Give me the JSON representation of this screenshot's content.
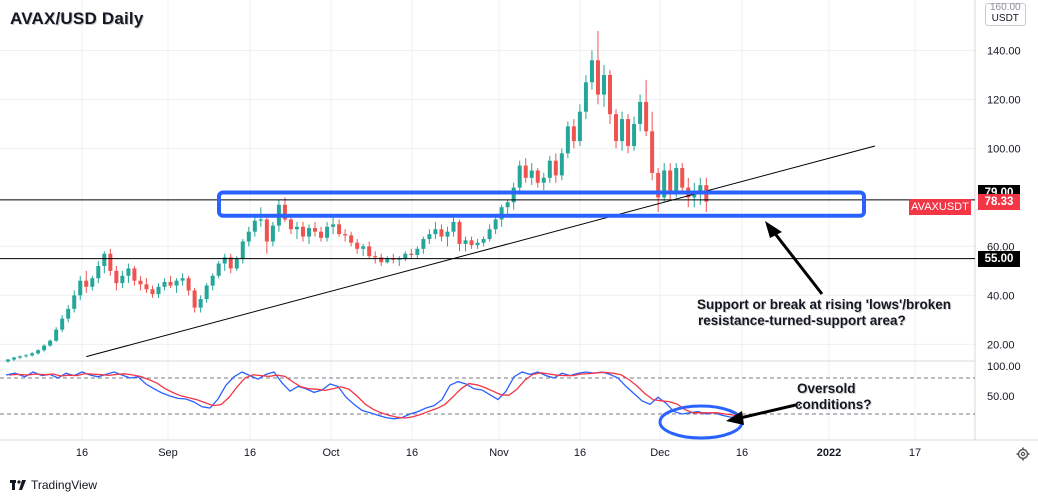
{
  "header": {
    "title": "AVAX/USD Daily"
  },
  "price_axis": {
    "currency": "USDT",
    "top_clipped_label": "160.00",
    "labels": [
      "140.00",
      "120.00",
      "100.00",
      "60.00",
      "40.00",
      "20.00"
    ],
    "label_values": [
      140,
      120,
      100,
      60,
      40,
      20
    ]
  },
  "price_tags": {
    "resistance": {
      "label": "79.00",
      "value": 79,
      "color": "#000000"
    },
    "last": {
      "label": "78.33",
      "value": 78.33,
      "color": "#f23645",
      "symbol": "AVAXUSDT"
    },
    "support": {
      "label": "55.00",
      "value": 55,
      "color": "#000000"
    }
  },
  "stoch_axis": {
    "labels": [
      "100.00",
      "50.00"
    ],
    "label_values": [
      100,
      50
    ]
  },
  "time_axis": {
    "labels": [
      "16",
      "Sep",
      "16",
      "Oct",
      "16",
      "Nov",
      "16",
      "Dec",
      "16",
      "2022",
      "17"
    ],
    "bold": "2022"
  },
  "annotations": {
    "support_note": {
      "line1": "Support or break at rising 'lows'/broken",
      "line2": "resistance-turned-support area?"
    },
    "oversold_note": {
      "line1": "Oversold",
      "line2": "conditions?"
    }
  },
  "branding": {
    "name": "TradingView"
  },
  "colors": {
    "up": "#26a69a",
    "down": "#ef5350",
    "highlight": "#2962ff",
    "stoch_k": "#2962ff",
    "stoch_d": "#f23645",
    "grid": "#eef0f3"
  },
  "chart_data": [
    {
      "type": "candlestick",
      "title": "AVAX/USD Daily",
      "ylim": [
        10,
        160
      ],
      "x": "daily candles, mid-Aug 2021 to mid-Dec 2021",
      "series": [
        {
          "name": "AVAXUSDT",
          "values": [
            [
              13,
              14,
              12.5,
              13.8
            ],
            [
              13.8,
              15,
              13.2,
              14.6
            ],
            [
              14.6,
              15.5,
              14,
              15.1
            ],
            [
              15.1,
              16,
              14.6,
              15.5
            ],
            [
              15.5,
              16.8,
              15,
              16.3
            ],
            [
              16.3,
              18,
              15.8,
              17.6
            ],
            [
              17.6,
              20,
              17,
              19.5
            ],
            [
              19.5,
              22,
              19,
              21.5
            ],
            [
              21.5,
              27,
              21,
              26
            ],
            [
              26,
              32,
              25,
              30.5
            ],
            [
              30.5,
              36,
              29,
              34.5
            ],
            [
              34.5,
              42,
              33,
              40
            ],
            [
              40,
              48,
              38,
              46
            ],
            [
              46,
              50,
              41,
              43.5
            ],
            [
              43.5,
              48,
              42,
              47
            ],
            [
              47,
              54,
              45,
              52
            ],
            [
              52,
              58,
              49,
              57
            ],
            [
              57,
              59,
              48,
              50
            ],
            [
              50,
              52,
              42,
              45
            ],
            [
              45,
              50,
              43,
              48
            ],
            [
              48,
              53,
              45,
              51
            ],
            [
              51,
              52,
              44,
              46
            ],
            [
              46,
              48,
              42,
              44.5
            ],
            [
              44.5,
              47,
              41,
              42.5
            ],
            [
              42.5,
              44,
              39,
              40.5
            ],
            [
              40.5,
              45,
              39,
              43.5
            ],
            [
              43.5,
              47,
              42,
              45.5
            ],
            [
              45.5,
              48,
              43,
              44
            ],
            [
              44,
              47,
              41,
              46
            ],
            [
              46,
              49,
              44,
              47
            ],
            [
              47,
              48,
              40,
              42
            ],
            [
              42,
              43,
              33,
              35
            ],
            [
              35,
              40,
              33,
              38.5
            ],
            [
              38.5,
              45,
              37,
              44
            ],
            [
              44,
              49,
              42,
              48
            ],
            [
              48,
              54,
              47,
              53
            ],
            [
              53,
              57,
              50,
              55.5
            ],
            [
              55.5,
              57,
              49,
              51
            ],
            [
              51,
              56,
              50,
              55
            ],
            [
              55,
              63,
              53,
              62
            ],
            [
              62,
              68,
              60,
              66
            ],
            [
              66,
              72,
              64,
              70.5
            ],
            [
              70.5,
              76,
              68,
              71
            ],
            [
              71,
              72,
              57,
              62
            ],
            [
              62,
              70,
              60,
              68.5
            ],
            [
              68.5,
              79,
              66,
              77
            ],
            [
              77,
              80,
              70,
              71
            ],
            [
              71,
              73,
              65,
              67
            ],
            [
              67,
              70,
              63,
              68
            ],
            [
              68,
              70,
              62,
              64
            ],
            [
              64,
              69,
              61,
              67.5
            ],
            [
              67.5,
              70,
              64,
              66
            ],
            [
              66,
              68,
              62,
              63.5
            ],
            [
              63.5,
              70,
              62,
              68
            ],
            [
              68,
              72,
              65,
              69
            ],
            [
              69,
              71,
              64,
              65
            ],
            [
              65,
              67,
              62,
              64.5
            ],
            [
              64.5,
              66,
              60,
              61.5
            ],
            [
              61.5,
              63,
              57,
              59
            ],
            [
              59,
              61,
              56,
              60
            ],
            [
              60,
              62,
              55,
              56
            ],
            [
              56,
              58,
              53,
              55.5
            ],
            [
              55.5,
              57,
              52,
              53.5
            ],
            [
              53.5,
              56,
              53,
              55
            ],
            [
              55,
              57,
              53,
              54.5
            ],
            [
              54.5,
              56,
              52,
              55
            ],
            [
              55,
              58,
              54,
              57
            ],
            [
              57,
              59,
              55,
              56.5
            ],
            [
              56.5,
              60,
              55,
              59
            ],
            [
              59,
              64,
              57,
              63
            ],
            [
              63,
              67,
              61,
              65
            ],
            [
              65,
              70,
              63,
              67
            ],
            [
              67,
              69,
              62,
              64
            ],
            [
              64,
              68,
              60,
              66
            ],
            [
              66,
              72,
              64,
              70
            ],
            [
              70,
              71,
              58,
              61
            ],
            [
              61,
              64,
              58,
              62.5
            ],
            [
              62.5,
              64,
              59,
              60.5
            ],
            [
              60.5,
              63,
              59,
              61.5
            ],
            [
              61.5,
              64,
              60,
              63
            ],
            [
              63,
              69,
              62,
              67
            ],
            [
              67,
              73,
              65,
              71
            ],
            [
              71,
              77,
              68,
              76
            ],
            [
              76,
              79,
              73,
              78
            ],
            [
              78,
              86,
              75,
              84
            ],
            [
              84,
              95,
              82,
              93
            ],
            [
              93,
              96,
              86,
              88
            ],
            [
              88,
              94,
              85,
              91
            ],
            [
              91,
              92,
              84,
              86
            ],
            [
              86,
              90,
              83,
              88
            ],
            [
              88,
              97,
              86,
              95
            ],
            [
              95,
              98,
              86,
              89
            ],
            [
              89,
              100,
              87,
              98
            ],
            [
              98,
              111,
              96,
              109
            ],
            [
              109,
              112,
              100,
              103
            ],
            [
              103,
              118,
              101,
              115
            ],
            [
              115,
              130,
              112,
              127
            ],
            [
              127,
              140,
              124,
              136
            ],
            [
              136,
              148,
              118,
              122
            ],
            [
              122,
              134,
              117,
              130
            ],
            [
              130,
              132,
              110,
              114
            ],
            [
              114,
              116,
              100,
              103
            ],
            [
              103,
              115,
              99,
              112
            ],
            [
              112,
              114,
              98,
              101
            ],
            [
              101,
              113,
              99,
              110
            ],
            [
              110,
              122,
              107,
              119
            ],
            [
              119,
              128,
              105,
              107
            ],
            [
              107,
              115,
              87,
              90
            ],
            [
              90,
              92,
              74,
              80
            ],
            [
              80,
              94,
              78,
              91
            ],
            [
              91,
              94,
              79,
              82
            ],
            [
              82,
              94,
              80,
              92
            ],
            [
              92,
              94,
              82,
              84
            ],
            [
              84,
              88,
              76,
              80
            ],
            [
              80,
              86,
              76,
              82
            ],
            [
              82,
              88,
              77,
              85
            ],
            [
              85,
              88,
              74,
              78.3
            ]
          ]
        }
      ],
      "lines": [
        {
          "name": "horizontal-resistance",
          "y": 79
        },
        {
          "name": "horizontal-support",
          "y": 55
        },
        {
          "name": "rising-trendline",
          "from_candle": 13,
          "from_price": 15,
          "to_candle": 144,
          "to_price": 101
        }
      ],
      "zone": {
        "name": "resistance-turned-support",
        "from_price": 72.5,
        "to_price": 82
      }
    },
    {
      "type": "line",
      "title": "",
      "ylim": [
        0,
        100
      ],
      "levels": [
        80,
        20
      ],
      "series": [
        {
          "name": "",
          "color": "#2962ff"
        },
        {
          "name": "",
          "color": "#f23645"
        }
      ]
    }
  ]
}
